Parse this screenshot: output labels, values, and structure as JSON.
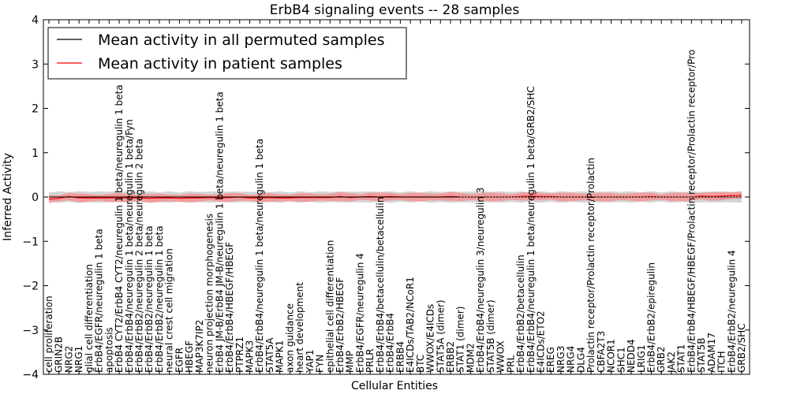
{
  "chart_data": {
    "type": "line",
    "title": "ErbB4 signaling events -- 28 samples",
    "xlabel": "Cellular Entities",
    "ylabel": "Inferred Activity",
    "ylim": [
      -4,
      4
    ],
    "yticks": [
      "4",
      "3",
      "2",
      "1",
      "0",
      "−1",
      "−2",
      "−3",
      "−4"
    ],
    "legend_position": "top-left",
    "colors": {
      "permuted": "#000000",
      "patient": "#ff0000",
      "patient_band": "#ff8080",
      "permuted_band": "#b0b0b0"
    },
    "categories": [
      "cell proliferation",
      "GRIN2B",
      "NRG2",
      "NRG1",
      "glial cell differentiation",
      "ErbB4/EGFR/neuregulin 1 beta",
      "apoptosis",
      "ErbB4 CYT2/ErbB4 CYT2/neuregulin 1 beta/neuregulin 1 beta",
      "ErbB4/ErbB4/neuregulin 1 beta/neuregulin 1 beta/Fyn",
      "ErbB4/ErbB2/neuregulin 2 beta/neuregulin 2 beta",
      "ErbB4/ErbB2/neuregulin 1 beta",
      "ErbB4/ErbB2/neuregulin 1 beta",
      "neural crest cell migration",
      "EGFR",
      "HBEGF",
      "MAP3K7IP2",
      "neuron projection morphogenesis",
      "ErbB4 JM-B/ErbB4 JM-B/neuregulin 1 beta/neuregulin 1 beta",
      "ErbB4/ErbB4/HBEGF/HBEGF",
      "PTPRZ1",
      "MAPK3",
      "ErbB4/ErbB4/neuregulin 1 beta/neuregulin 1 beta",
      "STAT5A",
      "MAPK1",
      "axon guidance",
      "heart development",
      "YAP1",
      "FYN",
      "epithelial cell differentiation",
      "ErbB4/ErbB2/HBEGF",
      "MMP",
      "ErbB4/EGFR/neuregulin 4",
      "PRLR",
      "ErbB4/ErbB4/betacellulin/betacellulin",
      "ErbB4/ErbB4",
      "ERBB4",
      "E4ICDs/TAB2/NCoR1",
      "BTC",
      "WWOX/E4ICDs",
      "STAT5A (dimer)",
      "ERBB2",
      "STAT1 (dimer)",
      "MDM2",
      "ErbB4/ErbB4/neuregulin 3/neuregulin 3",
      "STAT5B (dimer)",
      "WWOX",
      "PRL",
      "ErbB4/ErbB2/betacellulin",
      "ErbB4/ErbB4/neuregulin 1 beta/neuregulin 1 beta/GRB2/SHC",
      "E4ICDs/ETO2",
      "EREG",
      "NRG3",
      "NRG4",
      "DLG4",
      "Prolactin receptor/Prolactin receptor/Prolactin",
      "CBFA2T3",
      "NCOR1",
      "SHC1",
      "NEDD4",
      "LRIG1",
      "ErbB4/ErbB2/epiregulin",
      "GRB2",
      "JAK2",
      "STAT1",
      "ErbB4/ErbB4/HBEGF/HBEGF/Prolactin receptor/Prolactin receptor/Pro",
      "STAT5B",
      "ADAM17",
      "ITCH",
      "ErbB4/ErbB2/neuregulin 4",
      "GRB2/SHC"
    ],
    "series": [
      {
        "name": "Mean activity in all permuted samples",
        "values": [
          0.0,
          0.0,
          0.0,
          0.0,
          0.0,
          0.0,
          0.0,
          0.0,
          0.0,
          0.0,
          0.0,
          0.0,
          0.0,
          0.0,
          0.0,
          0.0,
          0.0,
          0.0,
          0.0,
          0.0,
          0.0,
          0.0,
          0.0,
          0.0,
          0.0,
          0.0,
          0.0,
          0.0,
          0.0,
          0.0,
          0.0,
          0.0,
          0.0,
          0.0,
          0.0,
          0.0,
          0.0,
          0.0,
          0.0,
          0.0,
          0.0,
          0.0,
          0.0,
          0.0,
          0.0,
          0.0,
          0.0,
          0.0,
          0.0,
          0.0,
          0.0,
          0.0,
          0.0,
          0.0,
          0.0,
          0.0,
          0.0,
          0.0,
          0.0,
          0.0,
          0.0,
          0.0,
          0.0,
          0.0,
          0.0,
          0.0,
          0.0,
          0.0,
          0.0,
          0.0
        ]
      },
      {
        "name": "Mean activity in patient samples",
        "values": [
          -0.05,
          -0.03,
          0.01,
          -0.02,
          -0.02,
          -0.02,
          -0.02,
          -0.01,
          -0.02,
          -0.02,
          -0.03,
          -0.02,
          -0.02,
          -0.03,
          -0.02,
          -0.02,
          -0.01,
          -0.02,
          -0.01,
          0.0,
          -0.02,
          -0.02,
          -0.01,
          -0.02,
          -0.02,
          -0.01,
          -0.01,
          -0.01,
          -0.01,
          0.01,
          -0.01,
          0.0,
          0.01,
          0.0,
          0.01,
          0.0,
          0.0,
          0.0,
          0.0,
          0.0,
          0.01,
          0.0,
          0.0,
          0.0,
          0.0,
          0.0,
          0.0,
          0.01,
          0.02,
          0.01,
          0.01,
          0.0,
          0.0,
          0.0,
          0.0,
          0.0,
          0.0,
          0.0,
          0.0,
          0.0,
          0.01,
          0.0,
          0.0,
          0.0,
          0.0,
          0.02,
          0.01,
          0.02,
          0.03,
          0.04
        ]
      }
    ]
  }
}
